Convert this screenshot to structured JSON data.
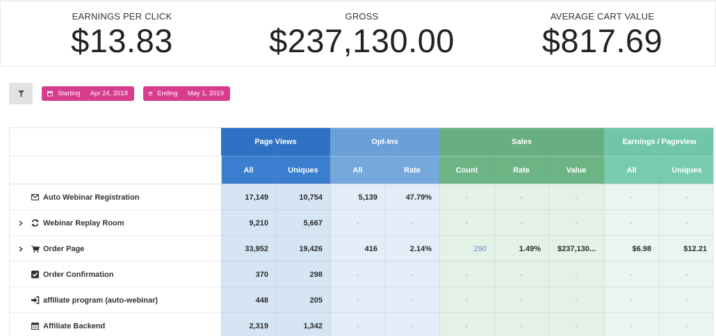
{
  "kpis": [
    {
      "label": "EARNINGS PER CLICK",
      "value": "$13.83"
    },
    {
      "label": "GROSS",
      "value": "$237,130.00"
    },
    {
      "label": "AVERAGE CART VALUE",
      "value": "$817.69"
    }
  ],
  "filter": {
    "icon": "filter-icon",
    "starting_label": "Starting",
    "starting_date": "Apr 24, 2018",
    "ending_label": "Ending",
    "ending_date": "May 1, 2019",
    "chip_color": "#d83c8e"
  },
  "table": {
    "groups": [
      {
        "label": "Page Views",
        "header_color": "#2f72c4",
        "sub_color": "#3b7ed0",
        "body_color": "#d6e5f4"
      },
      {
        "label": "Opt-Ins",
        "header_color": "#6a9fd8",
        "sub_color": "#76a8dd",
        "body_color": "#e3edf7"
      },
      {
        "label": "Sales",
        "header_color": "#67ae80",
        "sub_color": "#6db485",
        "body_color": "#e4f1e7"
      },
      {
        "label": "Earnings / Pageview",
        "header_color": "#72c6a8",
        "sub_color": "#79cbad",
        "body_color": "#e8f5f0"
      }
    ],
    "subheaders": [
      "All",
      "Uniques",
      "All",
      "Rate",
      "Count",
      "Rate",
      "Value",
      "All",
      "Uniques"
    ],
    "rows": [
      {
        "expandable": false,
        "icon": "envelope-icon",
        "name": "Auto Webinar Registration",
        "cells": [
          "17,149",
          "10,754",
          "5,139",
          "47.79%",
          "-",
          "-",
          "-",
          "-",
          "-"
        ]
      },
      {
        "expandable": true,
        "icon": "refresh-icon",
        "name": "Webinar Replay Room",
        "cells": [
          "9,210",
          "5,667",
          "-",
          "-",
          "-",
          "-",
          "-",
          "-",
          "-"
        ]
      },
      {
        "expandable": true,
        "icon": "cart-icon",
        "name": "Order Page",
        "cells": [
          "33,952",
          "19,426",
          "416",
          "2.14%",
          "290",
          "1.49%",
          "$237,130...",
          "$6.98",
          "$12.21"
        ]
      },
      {
        "expandable": false,
        "icon": "check-square-icon",
        "name": "Order Confirmation",
        "cells": [
          "370",
          "298",
          "-",
          "-",
          "-",
          "-",
          "-",
          "-",
          "-"
        ]
      },
      {
        "expandable": false,
        "icon": "sign-in-icon",
        "name": "affiliate program (auto-webinar)",
        "cells": [
          "448",
          "205",
          "-",
          "-",
          "-",
          "-",
          "-",
          "-",
          "-"
        ]
      },
      {
        "expandable": false,
        "icon": "calendar-icon",
        "name": "Affiliate Backend",
        "cells": [
          "2,319",
          "1,342",
          "-",
          "-",
          "-",
          "-",
          "-",
          "-",
          "-"
        ]
      }
    ],
    "link_color": "#5b8fc9"
  }
}
